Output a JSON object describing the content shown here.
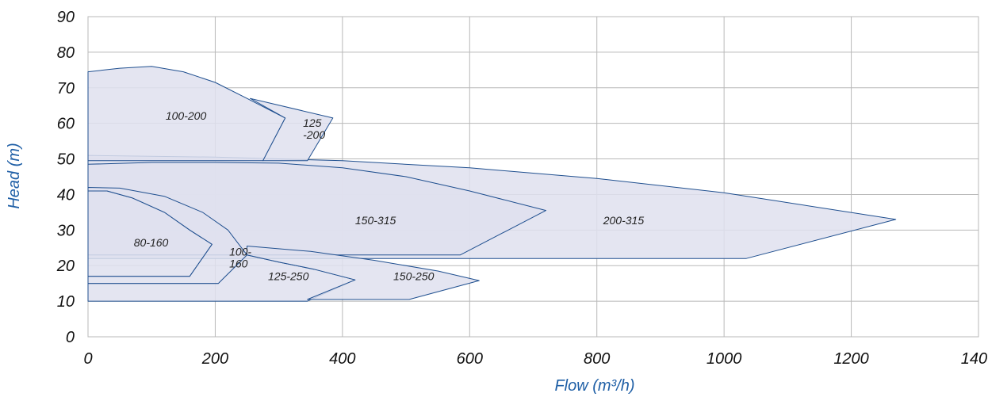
{
  "chart_data": {
    "type": "area",
    "title": "",
    "xlabel": "Flow (m³/h)",
    "ylabel": "Head (m)",
    "xlim": [
      0,
      1400
    ],
    "ylim": [
      0,
      90
    ],
    "x_ticks": [
      0,
      200,
      400,
      600,
      800,
      1000,
      1200,
      1400
    ],
    "y_ticks": [
      0,
      10,
      20,
      30,
      40,
      50,
      60,
      70,
      80,
      90
    ],
    "grid": true,
    "colors": {
      "fill": "#dfe1ee",
      "stroke": "#1f4f8f",
      "grid": "#b8b8b8",
      "axis_title": "#1f5fa6"
    },
    "series": [
      {
        "name": "200-315",
        "label_lines": [
          "200-315"
        ],
        "label_at": [
          810,
          32.7
        ],
        "points": [
          [
            0,
            51
          ],
          [
            200,
            50.5
          ],
          [
            400,
            49.5
          ],
          [
            600,
            47.5
          ],
          [
            800,
            44.5
          ],
          [
            1000,
            40.5
          ],
          [
            1270,
            33
          ],
          [
            1035,
            22
          ],
          [
            0,
            22
          ]
        ]
      },
      {
        "name": "150-315",
        "label_lines": [
          "150-315"
        ],
        "label_at": [
          420,
          32.7
        ],
        "points": [
          [
            0,
            48.5
          ],
          [
            100,
            49
          ],
          [
            200,
            49
          ],
          [
            300,
            48.8
          ],
          [
            400,
            47.5
          ],
          [
            500,
            45
          ],
          [
            600,
            41
          ],
          [
            720,
            35.5
          ],
          [
            585,
            23
          ],
          [
            0,
            23
          ]
        ]
      },
      {
        "name": "100-200",
        "label_lines": [
          "100-200"
        ],
        "label_at": [
          122,
          62.2
        ],
        "points": [
          [
            0,
            74.5
          ],
          [
            50,
            75.5
          ],
          [
            100,
            76
          ],
          [
            150,
            74.5
          ],
          [
            200,
            71.5
          ],
          [
            250,
            67
          ],
          [
            310,
            61.5
          ],
          [
            275,
            49.5
          ],
          [
            0,
            49.5
          ]
        ]
      },
      {
        "name": "125-200",
        "label_lines": [
          "125",
          "-200"
        ],
        "label_at": [
          338,
          58.5
        ],
        "points": [
          [
            255,
            67
          ],
          [
            385,
            61.5
          ],
          [
            345,
            49.5
          ],
          [
            275,
            49.5
          ],
          [
            310,
            61.5
          ]
        ]
      },
      {
        "name": "80-160",
        "label_lines": [
          "80-160"
        ],
        "label_at": [
          72,
          26.5
        ],
        "points": [
          [
            0,
            41
          ],
          [
            30,
            41
          ],
          [
            70,
            39
          ],
          [
            120,
            35
          ],
          [
            160,
            30
          ],
          [
            195,
            26
          ],
          [
            160,
            17
          ],
          [
            0,
            17
          ]
        ]
      },
      {
        "name": "100-160",
        "label_lines": [
          "100-",
          "160"
        ],
        "label_at": [
          222,
          22.3
        ],
        "points": [
          [
            0,
            42
          ],
          [
            50,
            41.8
          ],
          [
            120,
            39.5
          ],
          [
            180,
            35
          ],
          [
            220,
            30
          ],
          [
            250,
            23
          ],
          [
            205,
            15
          ],
          [
            0,
            15
          ],
          [
            0,
            17
          ],
          [
            160,
            17
          ],
          [
            195,
            26
          ],
          [
            160,
            30
          ],
          [
            120,
            35
          ],
          [
            70,
            39
          ],
          [
            30,
            41
          ],
          [
            0,
            41
          ]
        ]
      },
      {
        "name": "125-250",
        "label_lines": [
          "125-250"
        ],
        "label_at": [
          283,
          17
        ],
        "points": [
          [
            0,
            15
          ],
          [
            205,
            15
          ],
          [
            250,
            23
          ],
          [
            300,
            21
          ],
          [
            355,
            19
          ],
          [
            420,
            16
          ],
          [
            345,
            10
          ],
          [
            0,
            10
          ]
        ]
      },
      {
        "name": "150-250",
        "label_lines": [
          "150-250"
        ],
        "label_at": [
          480,
          17
        ],
        "points": [
          [
            250,
            25.5
          ],
          [
            350,
            24
          ],
          [
            450,
            21.5
          ],
          [
            550,
            18.5
          ],
          [
            615,
            15.8
          ],
          [
            505,
            10.5
          ],
          [
            345,
            10.5
          ],
          [
            420,
            16
          ],
          [
            355,
            19
          ],
          [
            300,
            21
          ],
          [
            250,
            23
          ]
        ]
      }
    ]
  }
}
